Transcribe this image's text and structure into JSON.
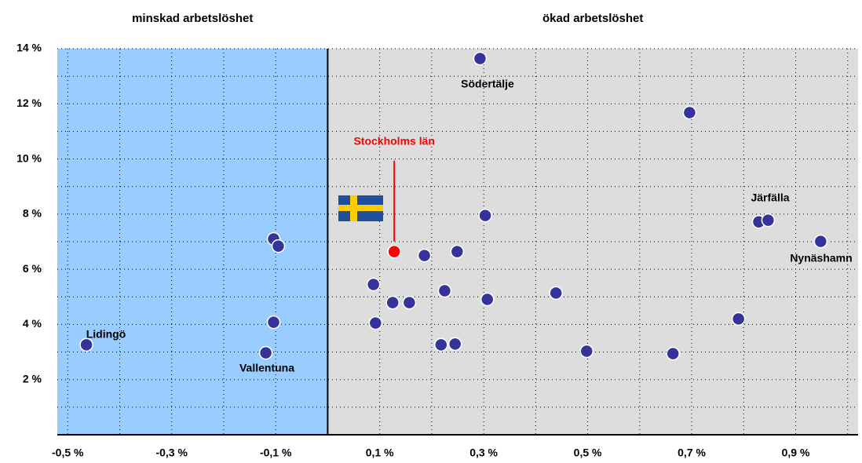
{
  "chart_data": {
    "type": "scatter",
    "region_labels": [
      "minskad arbetslöshet",
      "ökad arbetslöshet"
    ],
    "region_colors": [
      "#99ccff",
      "#dddddd"
    ],
    "xlim": [
      -0.52,
      1.02
    ],
    "ylim": [
      0,
      14
    ],
    "xticks": [
      {
        "value": -0.5,
        "label": "-0,5 %"
      },
      {
        "value": -0.3,
        "label": "-0,3 %"
      },
      {
        "value": -0.1,
        "label": "-0,1 %"
      },
      {
        "value": 0.1,
        "label": "0,1 %"
      },
      {
        "value": 0.3,
        "label": "0,3 %"
      },
      {
        "value": 0.5,
        "label": "0,5 %"
      },
      {
        "value": 0.7,
        "label": "0,7 %"
      },
      {
        "value": 0.9,
        "label": "0,9 %"
      }
    ],
    "yticks": [
      {
        "value": 2,
        "label": "2 %"
      },
      {
        "value": 4,
        "label": "4 %"
      },
      {
        "value": 6,
        "label": "6 %"
      },
      {
        "value": 8,
        "label": "8 %"
      },
      {
        "value": 10,
        "label": "10 %"
      },
      {
        "value": 12,
        "label": "12 %"
      },
      {
        "value": 14,
        "label": "14 %"
      }
    ],
    "minor_yticks": [
      1,
      3,
      5,
      7,
      9,
      11,
      13
    ],
    "minor_xticks": [
      -0.4,
      -0.2,
      0.2,
      0.4,
      0.6,
      0.8,
      1.0
    ],
    "grid": true,
    "series": [
      {
        "color": "#333399",
        "x": [
          -0.464,
          -0.119,
          -0.104,
          -0.104,
          -0.095,
          0.293,
          0.696,
          0.303,
          0.186,
          0.249,
          0.088,
          0.125,
          0.157,
          0.225,
          0.307,
          0.439,
          0.092,
          0.218,
          0.245,
          0.498,
          0.664,
          0.79,
          0.829,
          0.847,
          0.948
        ],
        "values": [
          3.26,
          2.97,
          4.08,
          7.1,
          6.84,
          13.64,
          11.68,
          7.95,
          6.5,
          6.64,
          5.45,
          4.79,
          4.79,
          5.22,
          4.91,
          5.14,
          4.05,
          3.26,
          3.29,
          3.03,
          2.94,
          4.2,
          7.72,
          7.78,
          7.01
        ]
      },
      {
        "name": "Stockholms län",
        "color": "#ff0000",
        "x": [
          0.128
        ],
        "values": [
          6.64
        ]
      }
    ],
    "point_labels": [
      "Lidingö",
      "Vallentuna",
      "Södertälje",
      "Järfälla",
      "Nynäshamn"
    ]
  }
}
